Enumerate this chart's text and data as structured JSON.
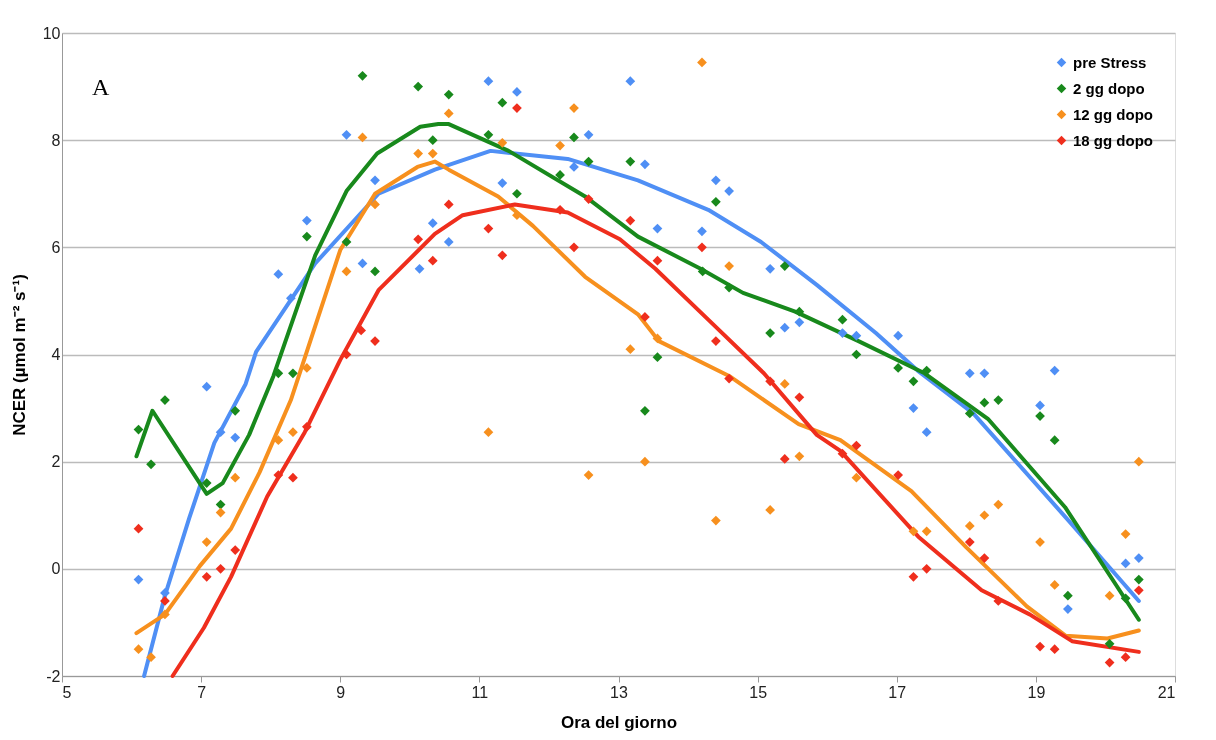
{
  "chart_data": {
    "type": "scatter",
    "xlabel": "Ora del giorno",
    "ylabel": "NCER (µmol m⁻² s⁻¹)",
    "xlim": [
      5,
      21
    ],
    "xticks": [
      5,
      7,
      9,
      11,
      13,
      15,
      17,
      19,
      21
    ],
    "ylim": [
      -2,
      10
    ],
    "yticks": [
      -2,
      0,
      2,
      4,
      6,
      8,
      10
    ],
    "grid": "y",
    "legend": "top right",
    "marker": "diamond",
    "annotations": [
      "A"
    ],
    "series": [
      {
        "name": "pre Stress",
        "color": "#4f8ff5",
        "x": [
          6.1,
          6.48,
          7.08,
          7.28,
          7.49,
          8.11,
          8.29,
          8.52,
          9.09,
          9.32,
          9.5,
          10.14,
          10.33,
          10.56,
          11.13,
          11.33,
          11.54,
          12.36,
          12.57,
          13.17,
          13.38,
          13.56,
          14.2,
          14.4,
          14.59,
          15.18,
          15.39,
          15.6,
          16.22,
          16.42,
          17.02,
          17.24,
          17.43,
          18.05,
          18.26,
          19.06,
          19.27,
          19.46,
          20.29,
          20.48
        ],
        "values": [
          -0.2,
          -0.45,
          3.4,
          2.55,
          2.45,
          5.5,
          5.05,
          6.5,
          8.1,
          5.7,
          7.25,
          5.6,
          6.45,
          6.1,
          9.1,
          7.2,
          8.9,
          7.5,
          8.1,
          9.1,
          7.55,
          6.35,
          6.3,
          7.25,
          7.05,
          5.6,
          4.5,
          4.6,
          4.4,
          4.35,
          4.35,
          3.0,
          2.55,
          3.65,
          3.65,
          3.05,
          3.7,
          -0.75,
          0.1,
          0.2
        ]
      },
      {
        "name": "2 gg dopo",
        "color": "#18891c",
        "x": [
          6.1,
          6.28,
          6.48,
          7.08,
          7.28,
          7.49,
          8.11,
          8.32,
          8.52,
          9.09,
          9.32,
          9.5,
          10.12,
          10.33,
          10.56,
          11.13,
          11.33,
          11.54,
          12.16,
          12.36,
          12.57,
          13.17,
          13.38,
          13.56,
          14.21,
          14.4,
          14.59,
          15.18,
          15.39,
          15.6,
          16.22,
          16.42,
          17.02,
          17.24,
          17.43,
          18.05,
          18.26,
          18.46,
          19.06,
          19.27,
          19.46,
          20.06,
          20.29,
          20.48
        ],
        "values": [
          2.6,
          1.95,
          3.15,
          1.6,
          1.2,
          2.95,
          3.65,
          3.65,
          6.2,
          6.1,
          9.2,
          5.55,
          9.0,
          8.0,
          8.85,
          8.1,
          8.7,
          7.0,
          7.35,
          8.05,
          7.6,
          7.6,
          2.95,
          3.95,
          5.55,
          6.85,
          5.25,
          4.4,
          5.65,
          4.8,
          4.65,
          4.0,
          3.75,
          3.5,
          3.7,
          2.9,
          3.1,
          3.15,
          2.85,
          2.4,
          -0.5,
          -1.4,
          -0.55,
          -0.2
        ]
      },
      {
        "name": "12 gg dopo",
        "color": "#f7901e",
        "x": [
          6.1,
          6.28,
          6.48,
          7.08,
          7.28,
          7.49,
          8.11,
          8.32,
          8.52,
          9.09,
          9.32,
          9.5,
          10.12,
          10.33,
          10.56,
          11.13,
          11.33,
          11.54,
          12.16,
          12.36,
          12.57,
          13.17,
          13.38,
          13.56,
          14.2,
          14.4,
          14.59,
          15.18,
          15.39,
          15.6,
          16.42,
          17.24,
          17.43,
          18.05,
          18.26,
          18.46,
          19.06,
          19.27,
          20.06,
          20.29,
          20.48
        ],
        "values": [
          -1.5,
          -1.65,
          -0.85,
          0.5,
          1.05,
          1.7,
          2.4,
          2.55,
          3.75,
          5.55,
          8.05,
          6.8,
          7.75,
          7.75,
          8.5,
          2.55,
          7.95,
          6.6,
          7.9,
          8.6,
          1.75,
          4.1,
          2.0,
          4.3,
          9.45,
          0.9,
          5.65,
          1.1,
          3.45,
          2.1,
          1.7,
          0.7,
          0.7,
          0.8,
          1.0,
          1.2,
          0.5,
          -0.3,
          -0.5,
          0.65,
          2.0
        ]
      },
      {
        "name": "18 gg dopo",
        "color": "#ef2e1d",
        "x": [
          6.1,
          6.48,
          7.08,
          7.28,
          7.49,
          8.11,
          8.32,
          8.52,
          9.09,
          9.3,
          9.5,
          10.12,
          10.33,
          10.56,
          11.13,
          11.33,
          11.54,
          12.16,
          12.36,
          12.57,
          13.17,
          13.38,
          13.56,
          14.2,
          14.4,
          14.59,
          15.18,
          15.39,
          15.6,
          16.22,
          16.42,
          17.02,
          17.24,
          17.43,
          18.05,
          18.26,
          18.46,
          19.06,
          19.27,
          20.06,
          20.29,
          20.48
        ],
        "values": [
          0.75,
          -0.6,
          -0.15,
          0.0,
          0.35,
          1.75,
          1.7,
          2.65,
          4.0,
          4.45,
          4.25,
          6.15,
          5.75,
          6.8,
          6.35,
          5.85,
          8.6,
          6.7,
          6.0,
          6.9,
          6.5,
          4.7,
          5.75,
          6.0,
          4.25,
          3.55,
          3.5,
          2.05,
          3.2,
          2.15,
          2.3,
          1.75,
          -0.15,
          0.0,
          0.5,
          0.2,
          -0.6,
          -1.45,
          -1.5,
          -1.75,
          -1.65,
          -0.4
        ]
      },
      {
        "type": "line",
        "marker": "none",
        "color": "#4f8ff5",
        "x": [
          6.18,
          6.48,
          6.83,
          7.19,
          7.64,
          7.79,
          8.64,
          9.55,
          10.36,
          11.16,
          12.27,
          13.28,
          14.29,
          15.05,
          15.85,
          16.7,
          17.3,
          18.1,
          19.47,
          20.48
        ],
        "values": [
          -2.0,
          -0.5,
          0.95,
          2.35,
          3.45,
          4.05,
          5.7,
          7.0,
          7.45,
          7.8,
          7.65,
          7.25,
          6.7,
          6.1,
          5.3,
          4.4,
          3.7,
          2.9,
          0.9,
          -0.6
        ]
      },
      {
        "type": "line",
        "marker": "none",
        "color": "#18891c",
        "x": [
          6.07,
          6.3,
          7.08,
          7.31,
          7.69,
          8.04,
          8.64,
          9.09,
          9.53,
          10.15,
          10.41,
          10.56,
          11.42,
          12.52,
          13.28,
          14.18,
          14.79,
          15.54,
          16.45,
          17.4,
          18.31,
          19.42,
          20.48
        ],
        "values": [
          2.1,
          2.95,
          1.4,
          1.6,
          2.5,
          3.6,
          5.85,
          7.05,
          7.75,
          8.25,
          8.3,
          8.3,
          7.8,
          6.95,
          6.2,
          5.6,
          5.15,
          4.8,
          4.25,
          3.65,
          2.8,
          1.15,
          -0.95
        ]
      },
      {
        "type": "line",
        "marker": "none",
        "color": "#f7901e",
        "x": [
          6.07,
          6.48,
          6.98,
          7.43,
          7.84,
          8.29,
          9.0,
          9.5,
          10.11,
          10.36,
          10.56,
          11.27,
          11.77,
          12.52,
          13.28,
          13.58,
          14.59,
          15.59,
          16.19,
          17.21,
          18.0,
          18.87,
          19.43,
          20.03,
          20.48
        ],
        "values": [
          -1.2,
          -0.85,
          0.05,
          0.75,
          1.8,
          3.15,
          5.95,
          7.0,
          7.5,
          7.6,
          7.45,
          6.95,
          6.4,
          5.45,
          4.75,
          4.25,
          3.6,
          2.7,
          2.4,
          1.45,
          0.4,
          -0.7,
          -1.25,
          -1.3,
          -1.15
        ]
      },
      {
        "type": "line",
        "marker": "none",
        "color": "#ef2e1d",
        "x": [
          6.59,
          7.04,
          7.43,
          7.95,
          8.49,
          9.0,
          9.55,
          10.36,
          10.76,
          11.51,
          12.27,
          13.02,
          13.53,
          14.29,
          15.09,
          15.85,
          16.19,
          17.31,
          18.22,
          18.91,
          19.52,
          20.48
        ],
        "values": [
          -2.0,
          -1.1,
          -0.15,
          1.35,
          2.55,
          3.9,
          5.2,
          6.25,
          6.6,
          6.8,
          6.65,
          6.15,
          5.6,
          4.65,
          3.65,
          2.5,
          2.2,
          0.6,
          -0.4,
          -0.85,
          -1.35,
          -1.55
        ]
      }
    ]
  }
}
